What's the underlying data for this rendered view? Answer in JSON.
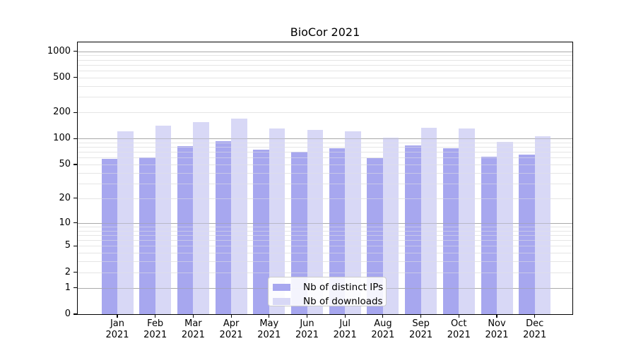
{
  "title": "BioCor 2021",
  "legend": {
    "items": [
      {
        "label": "Nb of distinct IPs",
        "color": "#a7a7ef"
      },
      {
        "label": "Nb of downloads",
        "color": "#d8d8f6"
      }
    ]
  },
  "x_axis": {
    "year": "2021",
    "months": [
      "Jan",
      "Feb",
      "Mar",
      "Apr",
      "May",
      "Jun",
      "Jul",
      "Aug",
      "Sep",
      "Oct",
      "Nov",
      "Dec"
    ]
  },
  "y_axis": {
    "tick_labels": [
      "0",
      "1",
      "2",
      "5",
      "10",
      "20",
      "50",
      "100",
      "200",
      "500",
      "1000"
    ]
  },
  "chart_data": {
    "type": "bar",
    "title": "BioCor 2021",
    "categories": [
      "Jan 2021",
      "Feb 2021",
      "Mar 2021",
      "Apr 2021",
      "May 2021",
      "Jun 2021",
      "Jul 2021",
      "Aug 2021",
      "Sep 2021",
      "Oct 2021",
      "Nov 2021",
      "Dec 2021"
    ],
    "series": [
      {
        "name": "Nb of distinct IPs",
        "color": "#a7a7ef",
        "values": [
          58,
          60,
          81,
          93,
          74,
          70,
          77,
          59,
          83,
          77,
          62,
          65
        ]
      },
      {
        "name": "Nb of downloads",
        "color": "#d8d8f6",
        "values": [
          120,
          141,
          155,
          170,
          130,
          125,
          122,
          102,
          133,
          131,
          92,
          106
        ]
      }
    ],
    "xlabel": "",
    "ylabel": "",
    "yscale": "symlog-log1p",
    "ylim": [
      0,
      1263
    ],
    "y_major_ticks": [
      0,
      1,
      2,
      5,
      10,
      20,
      50,
      100,
      200,
      500,
      1000
    ],
    "y_major_gridlines": [
      1,
      10,
      100,
      1000
    ],
    "y_minor_gridlines": [
      2,
      3,
      4,
      5,
      6,
      7,
      8,
      9,
      20,
      30,
      40,
      50,
      60,
      70,
      80,
      90,
      200,
      300,
      400,
      500,
      600,
      700,
      800,
      900
    ],
    "grid": true,
    "legend_position": "lower center inside plot",
    "colors": {
      "major_grid": "#b3b3b3",
      "minor_grid": "#e9e9e9",
      "axis": "#000000",
      "background": "#ffffff"
    }
  }
}
